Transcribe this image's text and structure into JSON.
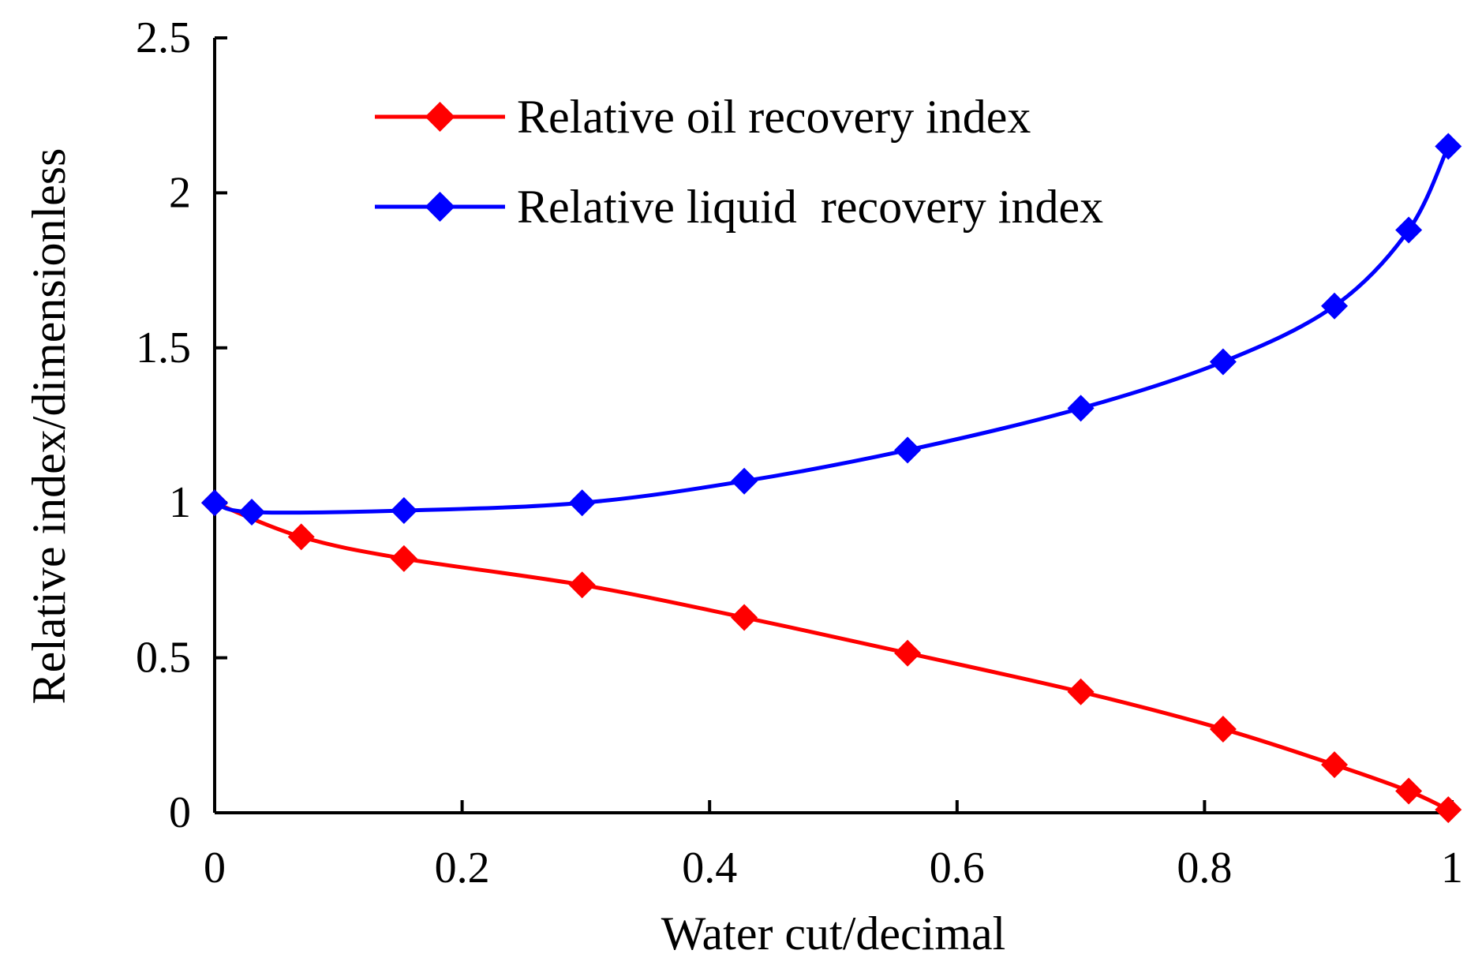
{
  "chart_data": {
    "type": "line",
    "title": "",
    "xlabel": "Water cut/decimal",
    "ylabel": "Relative index/dimensionless",
    "xlim": [
      0,
      1
    ],
    "ylim": [
      0,
      2.5
    ],
    "xticks": [
      0,
      0.2,
      0.4,
      0.6,
      0.8,
      1
    ],
    "xtick_labels": [
      "0",
      "0.2",
      "0.4",
      "0.6",
      "0.8",
      "1"
    ],
    "yticks": [
      0,
      0.5,
      1,
      1.5,
      2,
      2.5
    ],
    "ytick_labels": [
      "0",
      "0.5",
      "1",
      "1.5",
      "2",
      "2.5"
    ],
    "grid": false,
    "legend_position": "top-center",
    "series": [
      {
        "name": "Relative oil recovery index",
        "color": "#ff0000",
        "marker": "diamond",
        "x": [
          0,
          0.07,
          0.153,
          0.297,
          0.428,
          0.56,
          0.7,
          0.815,
          0.905,
          0.965,
          0.997
        ],
        "y": [
          1.0,
          0.89,
          0.82,
          0.735,
          0.63,
          0.515,
          0.39,
          0.27,
          0.155,
          0.07,
          0.01
        ]
      },
      {
        "name": "Relative liquid  recovery index",
        "color": "#0000ff",
        "marker": "diamond",
        "x": [
          0,
          0.03,
          0.153,
          0.297,
          0.428,
          0.56,
          0.7,
          0.815,
          0.905,
          0.965,
          0.997
        ],
        "y": [
          1.0,
          0.97,
          0.975,
          1.0,
          1.07,
          1.17,
          1.305,
          1.455,
          1.635,
          1.88,
          2.15
        ]
      }
    ]
  }
}
